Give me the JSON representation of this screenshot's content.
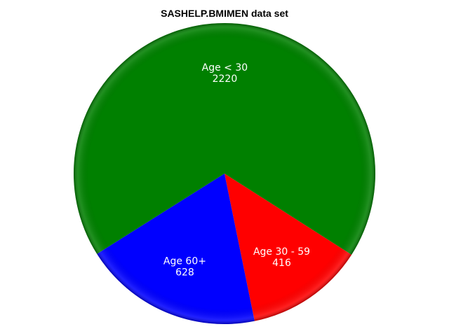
{
  "chart_data": {
    "type": "pie",
    "title": "SASHELP.BMIMEN data set",
    "slices": [
      {
        "label": "Age 30 - 59",
        "value": 416,
        "color": "#ff0000"
      },
      {
        "label": "Age 60+",
        "value": 628,
        "color": "#0000ff"
      },
      {
        "label": "Age < 30",
        "value": 2220,
        "color": "#008000"
      }
    ],
    "direction": "clockwise",
    "data_labels": "inside"
  }
}
